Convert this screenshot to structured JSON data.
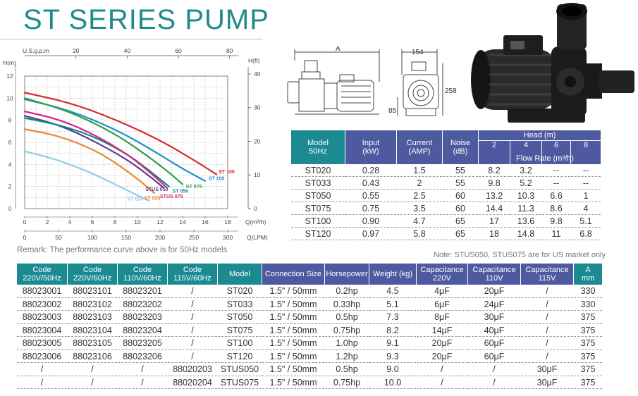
{
  "title": "ST SERIES PUMP",
  "remark": "Remark: The performance curve above is for 50Hz models",
  "note": "Note: STUS050, STUS075 are for US market only",
  "drawing": {
    "dim_a": "A",
    "dim_154": "154",
    "dim_258": "258",
    "dim_85": "85"
  },
  "chart_data": {
    "type": "line",
    "y_axis_label": "H(m)",
    "y_ticks": [
      "0",
      "2",
      "4",
      "6",
      "8",
      "10",
      "12"
    ],
    "y_range": [
      0,
      12
    ],
    "x_axis_label": "Q(m³/h)",
    "x_ticks": [
      "0",
      "2",
      "4",
      "6",
      "8",
      "10",
      "12",
      "14",
      "16",
      "18"
    ],
    "x_range": [
      0,
      18
    ],
    "top_axis_label": "U.S.g.p.m",
    "top_ticks": [
      "20",
      "40",
      "60",
      "80"
    ],
    "right_axis_label": "H(ft)",
    "right_ticks": [
      "0",
      "10",
      "20",
      "30",
      "40"
    ],
    "lpm_axis_label": "Q(LPM)",
    "lpm_ticks": [
      "0",
      "50",
      "100",
      "150",
      "200",
      "250",
      "300"
    ],
    "grid": true,
    "series": [
      {
        "name": "ST 100",
        "color": "#d9272e",
        "points": [
          [
            0,
            10.5
          ],
          [
            4,
            9.6
          ],
          [
            8,
            8.1
          ],
          [
            12,
            6.2
          ],
          [
            15,
            4.4
          ],
          [
            17,
            3.1
          ]
        ]
      },
      {
        "name": "ST 100",
        "color": "#1f8fc8",
        "points": [
          [
            0,
            9.9
          ],
          [
            4,
            8.9
          ],
          [
            8,
            7.2
          ],
          [
            11,
            5.5
          ],
          [
            14,
            3.6
          ],
          [
            16,
            2.5
          ]
        ]
      },
      {
        "name": "ST 075",
        "color": "#2ba14a",
        "points": [
          [
            0,
            10.0
          ],
          [
            4,
            8.8
          ],
          [
            8,
            6.8
          ],
          [
            11,
            4.7
          ],
          [
            13,
            3.1
          ],
          [
            14,
            2.2
          ]
        ]
      },
      {
        "name": "STUS 050",
        "color": "#5a3a91",
        "points": [
          [
            0,
            8.4
          ],
          [
            3,
            7.6
          ],
          [
            6,
            6.2
          ],
          [
            9,
            4.5
          ],
          [
            11,
            3.0
          ],
          [
            12.3,
            1.9
          ]
        ]
      },
      {
        "name": "ST 050",
        "color": "#0f8a86",
        "points": [
          [
            0,
            8.2
          ],
          [
            3,
            7.6
          ],
          [
            6,
            6.6
          ],
          [
            9,
            5.0
          ],
          [
            11,
            3.5
          ],
          [
            12.8,
            2.0
          ]
        ]
      },
      {
        "name": "STUS 075",
        "color": "#d6267c",
        "points": [
          [
            0,
            8.8
          ],
          [
            3,
            8.1
          ],
          [
            6,
            6.8
          ],
          [
            9,
            5.0
          ],
          [
            11,
            3.4
          ],
          [
            12.6,
            1.9
          ]
        ]
      },
      {
        "name": "ST 033",
        "color": "#e8862a",
        "points": [
          [
            0,
            7.2
          ],
          [
            3,
            6.6
          ],
          [
            6,
            5.4
          ],
          [
            8,
            4.2
          ],
          [
            10,
            2.7
          ],
          [
            11.5,
            1.4
          ]
        ]
      },
      {
        "name": "ST 020",
        "color": "#92cde8",
        "points": [
          [
            0,
            5.2
          ],
          [
            3,
            4.4
          ],
          [
            6,
            3.2
          ],
          [
            8,
            2.2
          ],
          [
            10,
            1.2
          ],
          [
            11,
            0.7
          ]
        ]
      }
    ],
    "labels": [
      {
        "text": "ST 100",
        "color": "#d9272e",
        "x": 17.2,
        "y": 3.2
      },
      {
        "text": "ST 100",
        "color": "#1f8fc8",
        "x": 16.3,
        "y": 2.6
      },
      {
        "text": "ST 075",
        "color": "#2ba14a",
        "x": 14.3,
        "y": 1.85
      },
      {
        "text": "ST 050",
        "color": "#0f8a86",
        "x": 13.1,
        "y": 1.45
      },
      {
        "text": "STUS 050",
        "color": "#5a3a91",
        "x": 10.7,
        "y": 1.6
      },
      {
        "text": "ST 033",
        "color": "#e8862a",
        "x": 10.6,
        "y": 0.8
      },
      {
        "text": "STUS 075",
        "color": "#d6267c",
        "x": 12.0,
        "y": 0.95
      },
      {
        "text": "ST 020",
        "color": "#92cde8",
        "x": 9.1,
        "y": 0.75
      }
    ]
  },
  "perf_table": {
    "headers": {
      "model": [
        "Model",
        "50Hz"
      ],
      "input": [
        "Input",
        "(kW)"
      ],
      "current": [
        "Current",
        "(AMP)"
      ],
      "noise": [
        "Noise",
        "(dB)"
      ],
      "head": "Head (m)",
      "head_values": [
        "2",
        "4",
        "6",
        "8"
      ],
      "flow": "Flow Rate (m³/h)"
    },
    "rows": [
      [
        "ST020",
        "0.28",
        "1.5",
        "55",
        "8.2",
        "3.2",
        "--",
        "--"
      ],
      [
        "ST033",
        "0.43",
        "2",
        "55",
        "9.8",
        "5.2",
        "--",
        "--"
      ],
      [
        "ST050",
        "0.55",
        "2.5",
        "60",
        "13.2",
        "10.3",
        "6.6",
        "1"
      ],
      [
        "ST075",
        "0.75",
        "3.5",
        "60",
        "14.4",
        "11.3",
        "8.6",
        "4"
      ],
      [
        "ST100",
        "0.90",
        "4.7",
        "65",
        "17",
        "13.6",
        "9.8",
        "5.1"
      ],
      [
        "ST120",
        "0.97",
        "5.8",
        "65",
        "18",
        "14.8",
        "11",
        "6.8"
      ]
    ]
  },
  "spec_table": {
    "headers": [
      [
        "Code",
        "220V/50Hz"
      ],
      [
        "Code",
        "220V/60Hz"
      ],
      [
        "Code",
        "110V/60Hz"
      ],
      [
        "Code",
        "115V/60Hz"
      ],
      [
        "Model"
      ],
      [
        "Connection Size"
      ],
      [
        "Horsepower"
      ],
      [
        "Weight (kg)"
      ],
      [
        "Capacitance",
        "220V"
      ],
      [
        "Capacitance",
        "110V"
      ],
      [
        "Capacitance",
        "115V"
      ],
      [
        "A",
        "mm"
      ]
    ],
    "rows": [
      [
        "88023001",
        "88023101",
        "88023201",
        "/",
        "ST020",
        "1.5\" / 50mm",
        "0.2hp",
        "4.5",
        "4μF",
        "20μF",
        "/",
        "330"
      ],
      [
        "88023002",
        "88023102",
        "88023202",
        "/",
        "ST033",
        "1.5\" / 50mm",
        "0.33hp",
        "5.1",
        "6μF",
        "24μF",
        "/",
        "330"
      ],
      [
        "88023003",
        "88023103",
        "88023203",
        "/",
        "ST050",
        "1.5\" / 50mm",
        "0.5hp",
        "7.3",
        "8μF",
        "30μF",
        "/",
        "375"
      ],
      [
        "88023004",
        "88023104",
        "88023204",
        "/",
        "ST075",
        "1.5\" / 50mm",
        "0.75hp",
        "8.2",
        "14μF",
        "40μF",
        "/",
        "375"
      ],
      [
        "88023005",
        "88023105",
        "88023205",
        "/",
        "ST100",
        "1.5\" / 50mm",
        "1.0hp",
        "9.1",
        "20μF",
        "60μF",
        "/",
        "375"
      ],
      [
        "88023006",
        "88023106",
        "88023206",
        "/",
        "ST120",
        "1.5\" / 50mm",
        "1.2hp",
        "9.3",
        "20μF",
        "60μF",
        "/",
        "375"
      ],
      [
        "/",
        "/",
        "/",
        "88020203",
        "STUS050",
        "1.5\" / 50mm",
        "0.5hp",
        "9.0",
        "/",
        "/",
        "30μF",
        "375"
      ],
      [
        "/",
        "/",
        "/",
        "88020204",
        "STUS075",
        "1.5\" / 50mm",
        "0.75hp",
        "10.0",
        "/",
        "/",
        "30μF",
        "375"
      ]
    ]
  }
}
